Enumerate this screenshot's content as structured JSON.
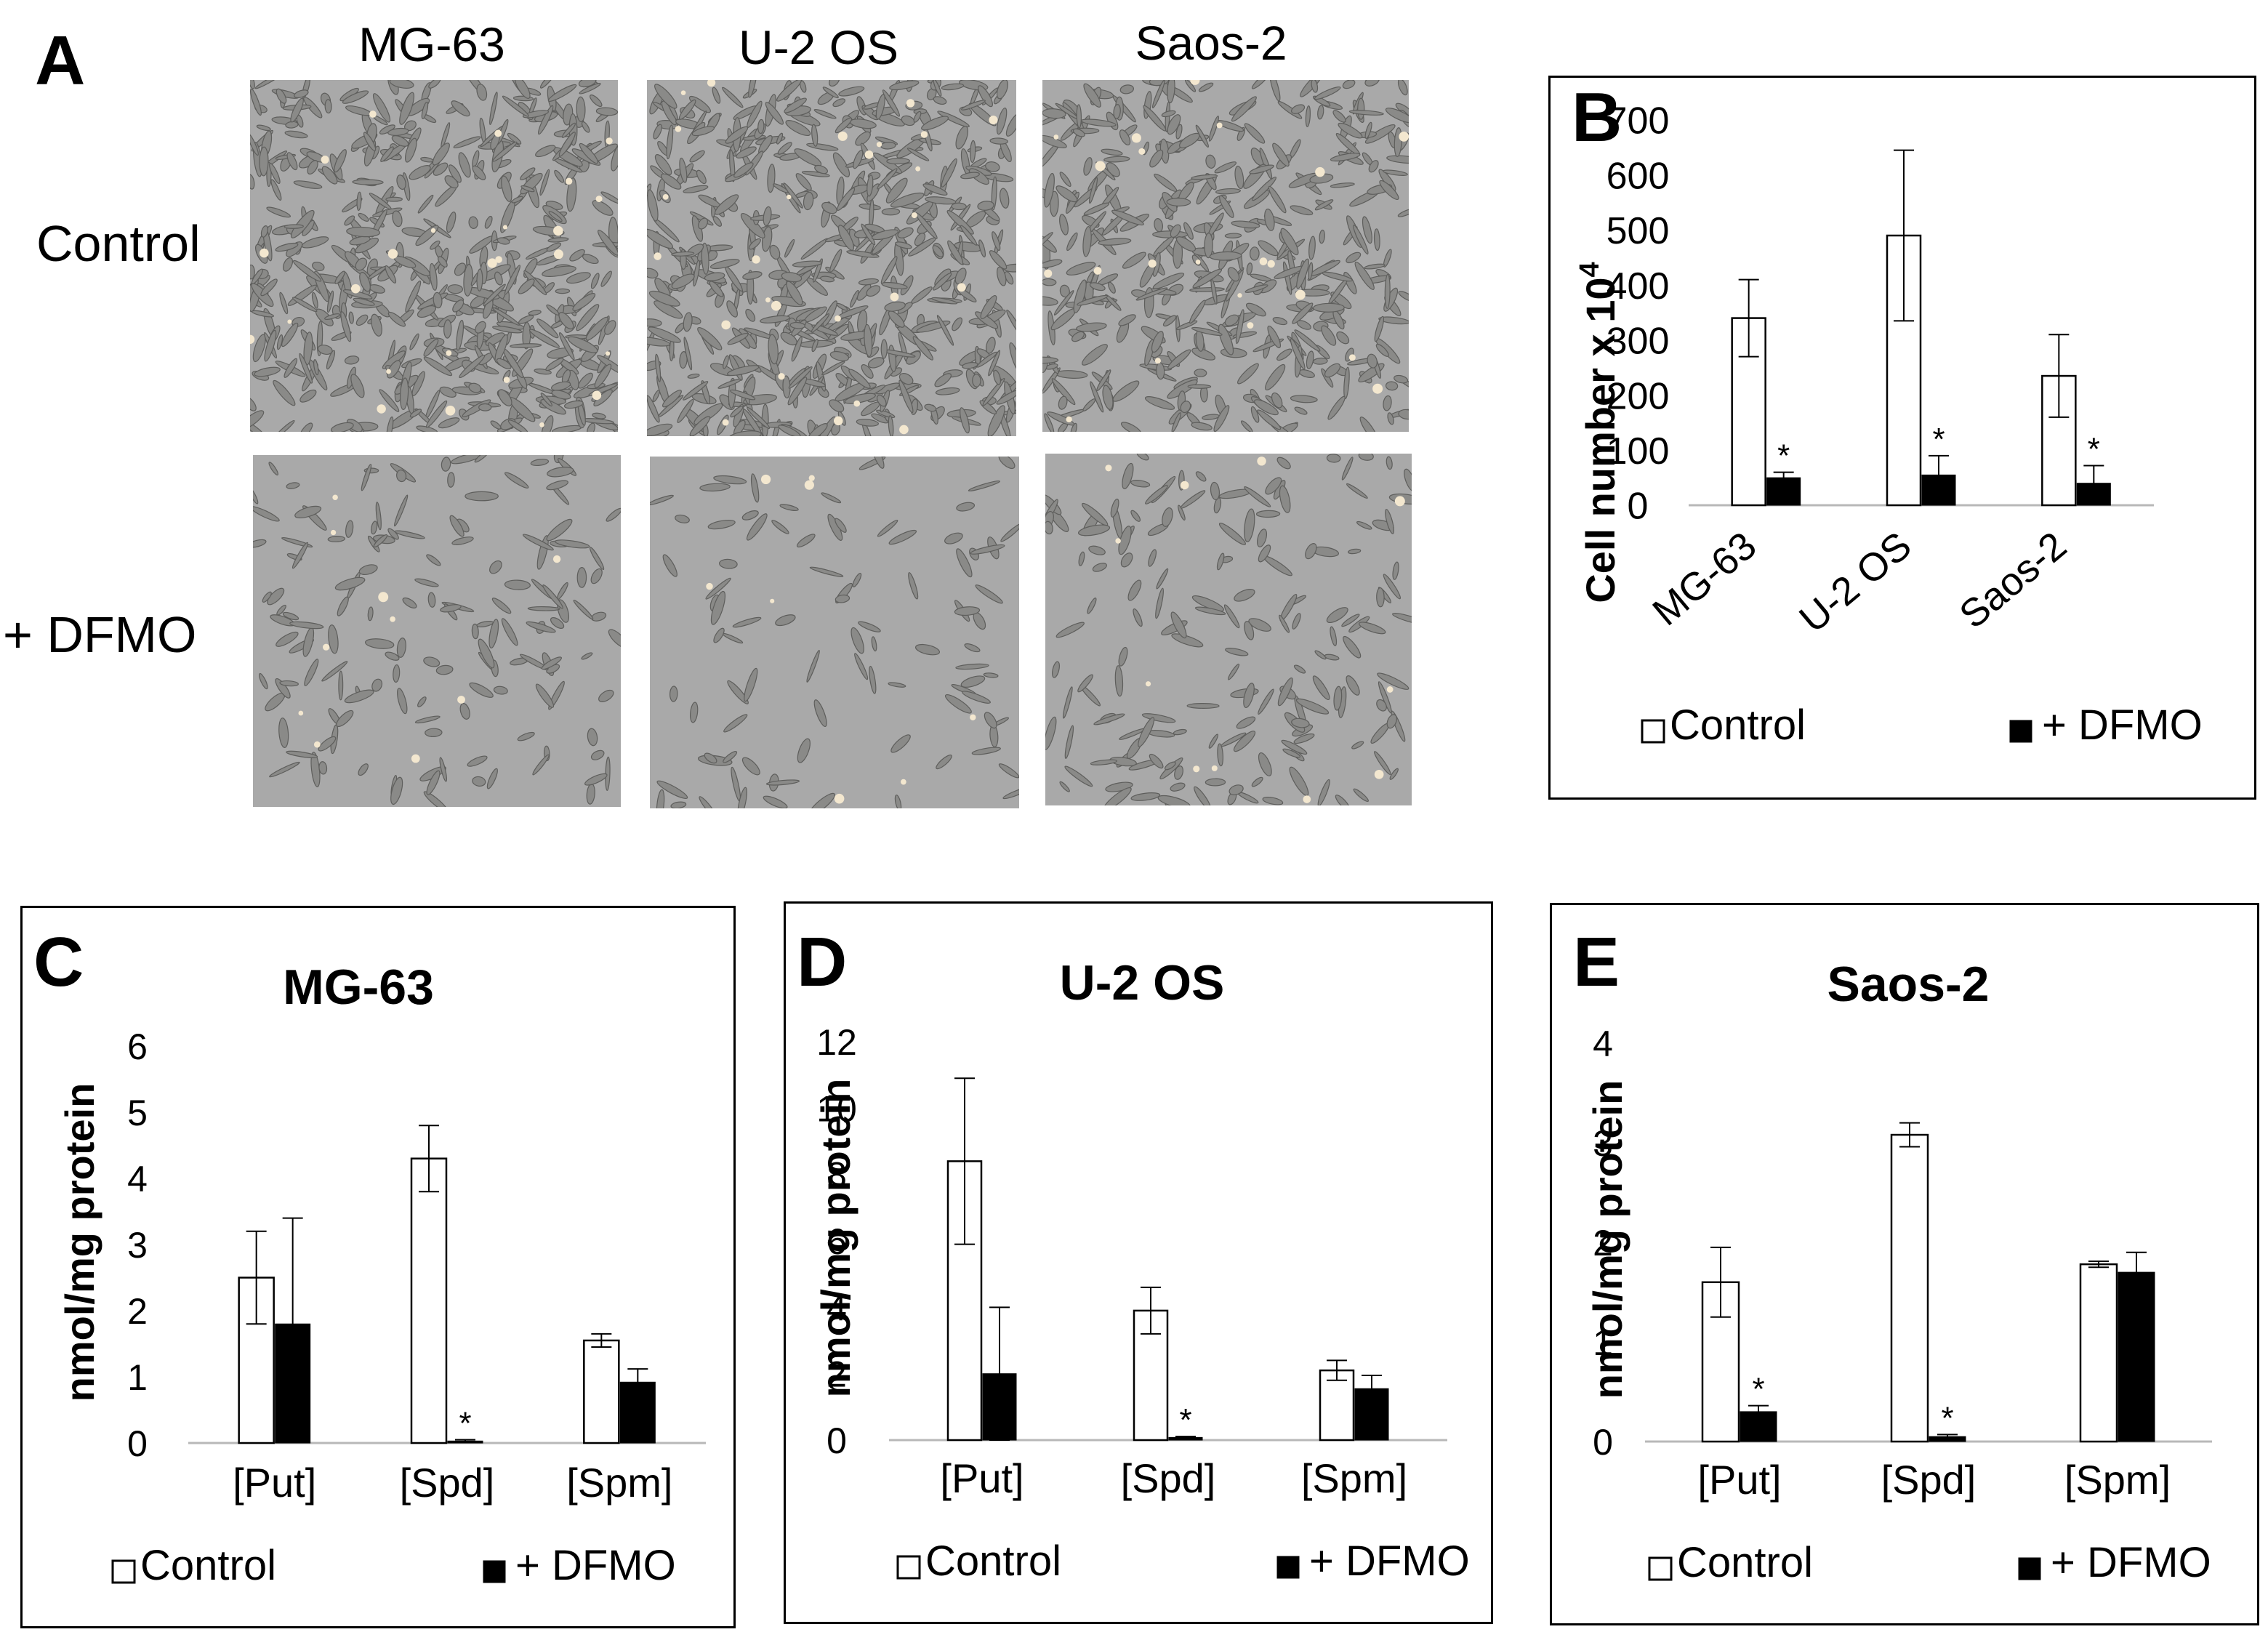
{
  "panel_a": {
    "letter": "A",
    "columns": [
      "MG-63",
      "U-2 OS",
      "Saos-2"
    ],
    "rows": [
      "Control",
      "+ DFMO"
    ],
    "image_descriptions": [
      [
        "micrograph-mg63-control",
        "micrograph-u2os-control",
        "micrograph-saos2-control"
      ],
      [
        "micrograph-mg63-dfmo",
        "micrograph-u2os-dfmo",
        "micrograph-saos2-dfmo"
      ]
    ]
  },
  "panel_b": {
    "letter": "B"
  },
  "panel_c": {
    "letter": "C"
  },
  "panel_d": {
    "letter": "D"
  },
  "panel_e": {
    "letter": "E"
  },
  "legend": {
    "control": "Control",
    "dfmo": "+ DFMO"
  },
  "significance_marker": "*",
  "chart_data": [
    {
      "id": "B",
      "type": "bar",
      "title": "",
      "ylabel": "Cell number x 10",
      "ylabel_superscript": "4",
      "xlabel": "",
      "categories": [
        "MG-63",
        "U-2 OS",
        "Saos-2"
      ],
      "ylim": [
        0,
        700
      ],
      "yticks": [
        0,
        100,
        200,
        300,
        400,
        500,
        600,
        700
      ],
      "series": [
        {
          "name": "Control",
          "values": [
            340,
            490,
            235
          ],
          "errors": [
            70,
            155,
            75
          ],
          "color": "#ffffff"
        },
        {
          "name": "+ DFMO",
          "values": [
            50,
            55,
            40
          ],
          "errors": [
            10,
            35,
            32
          ],
          "color": "#000000",
          "significant": [
            true,
            true,
            true
          ]
        }
      ],
      "grid": false,
      "legend_position": "bottom"
    },
    {
      "id": "C",
      "type": "bar",
      "title": "MG-63",
      "ylabel": "nmol/mg protein",
      "xlabel": "",
      "categories": [
        "[Put]",
        "[Spd]",
        "[Spm]"
      ],
      "ylim": [
        0,
        6
      ],
      "yticks": [
        0,
        1,
        2,
        3,
        4,
        5,
        6
      ],
      "series": [
        {
          "name": "Control",
          "values": [
            2.5,
            4.3,
            1.55
          ],
          "errors": [
            0.7,
            0.5,
            0.1
          ],
          "color": "#ffffff"
        },
        {
          "name": "+ DFMO",
          "values": [
            1.8,
            0.03,
            0.92
          ],
          "errors": [
            1.6,
            0.02,
            0.2
          ],
          "color": "#000000",
          "significant": [
            false,
            true,
            false
          ]
        }
      ],
      "grid": false,
      "legend_position": "bottom"
    },
    {
      "id": "D",
      "type": "bar",
      "title": "U-2 OS",
      "ylabel": "nmol/mg protein",
      "xlabel": "",
      "categories": [
        "[Put]",
        "[Spd]",
        "[Spm]"
      ],
      "ylim": [
        0,
        12
      ],
      "yticks": [
        0,
        2,
        4,
        6,
        8,
        10,
        12
      ],
      "series": [
        {
          "name": "Control",
          "values": [
            8.4,
            3.9,
            2.1
          ],
          "errors": [
            2.5,
            0.7,
            0.3
          ],
          "color": "#ffffff"
        },
        {
          "name": "+ DFMO",
          "values": [
            2.0,
            0.08,
            1.55
          ],
          "errors": [
            2.0,
            0.03,
            0.4
          ],
          "color": "#000000",
          "significant": [
            false,
            true,
            false
          ]
        }
      ],
      "grid": false,
      "legend_position": "bottom"
    },
    {
      "id": "E",
      "type": "bar",
      "title": "Saos-2",
      "ylabel": "nmol/mg protein",
      "xlabel": "",
      "categories": [
        "[Put]",
        "[Spd]",
        "[Spm]"
      ],
      "ylim": [
        0,
        4
      ],
      "yticks": [
        0,
        1,
        2,
        3,
        4
      ],
      "series": [
        {
          "name": "Control",
          "values": [
            1.6,
            3.08,
            1.78
          ],
          "errors": [
            0.35,
            0.12,
            0.03
          ],
          "color": "#ffffff"
        },
        {
          "name": "+ DFMO",
          "values": [
            0.3,
            0.05,
            1.7
          ],
          "errors": [
            0.06,
            0.02,
            0.2
          ],
          "color": "#000000",
          "significant": [
            true,
            true,
            false
          ]
        }
      ],
      "grid": false,
      "legend_position": "bottom"
    }
  ]
}
